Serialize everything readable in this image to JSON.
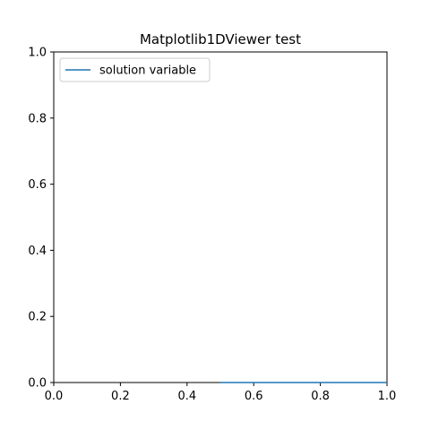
{
  "chart_data": {
    "type": "line",
    "title": "Matplotlib1DViewer test",
    "xlabel": "",
    "ylabel": "",
    "xlim": [
      0.0,
      1.0
    ],
    "ylim": [
      0.0,
      1.0
    ],
    "xticks": [
      "0.0",
      "0.2",
      "0.4",
      "0.6",
      "0.8",
      "1.0"
    ],
    "yticks": [
      "0.0",
      "0.2",
      "0.4",
      "0.6",
      "0.8",
      "1.0"
    ],
    "grid": false,
    "legend_position": "upper-left",
    "series": [
      {
        "name": "solution variable",
        "color": "#1f77b4",
        "x": [
          0.5,
          0.6,
          0.7,
          0.8,
          0.9,
          1.0
        ],
        "y": [
          0.0,
          0.0,
          0.0,
          0.0,
          0.0,
          0.0
        ]
      }
    ]
  }
}
